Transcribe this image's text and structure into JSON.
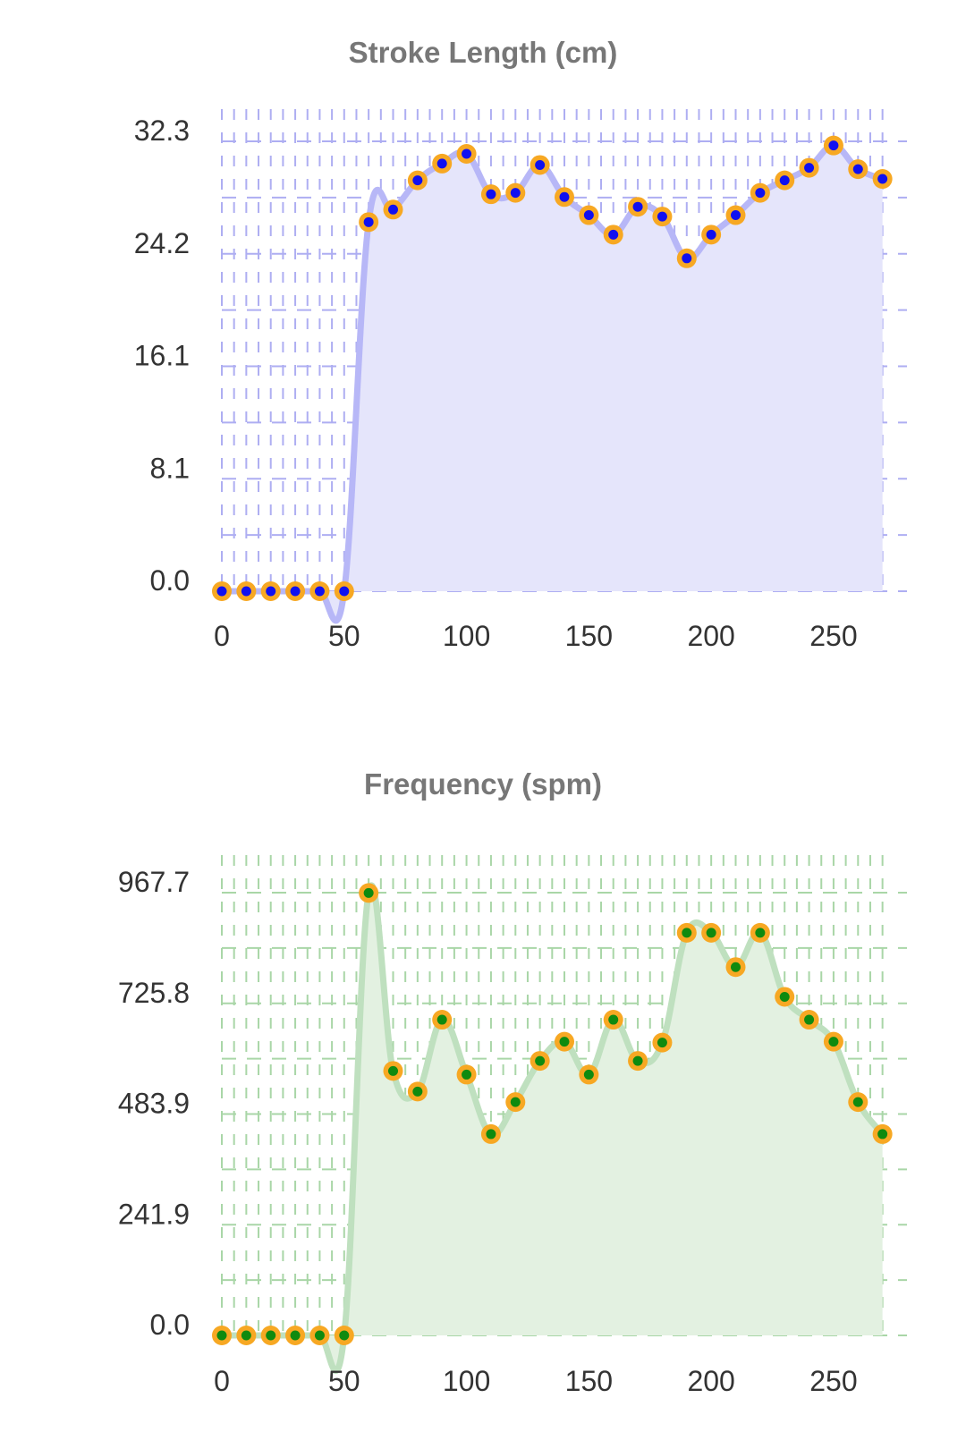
{
  "chart_data": [
    {
      "type": "line",
      "title": "Stroke Length (cm)",
      "xlabel": "",
      "ylabel": "",
      "x": [
        0,
        10,
        20,
        30,
        40,
        50,
        60,
        70,
        80,
        90,
        100,
        110,
        120,
        130,
        140,
        150,
        160,
        170,
        180,
        190,
        200,
        210,
        220,
        230,
        240,
        250,
        260,
        270
      ],
      "values": [
        0,
        0,
        0,
        0,
        0,
        0,
        26.5,
        27.4,
        29.5,
        30.7,
        31.4,
        28.5,
        28.6,
        30.6,
        28.3,
        27.0,
        25.6,
        27.6,
        26.9,
        23.9,
        25.6,
        27.0,
        28.6,
        29.5,
        30.4,
        32.0,
        30.3,
        29.6
      ],
      "ylim": [
        0,
        32.3
      ],
      "xlim": [
        0,
        280
      ],
      "yticks": [
        "0.0",
        "8.1",
        "16.1",
        "24.2",
        "32.3"
      ],
      "xticks": [
        "0",
        "50",
        "100",
        "150",
        "200",
        "250"
      ],
      "grid": true,
      "colors": {
        "line": "#b7b7f7",
        "fill": "#e5e5fb",
        "grid": "#aeaef2",
        "marker_outer": "#f7a823",
        "marker_inner": "#1010f0"
      }
    },
    {
      "type": "line",
      "title": "Frequency (spm)",
      "xlabel": "",
      "ylabel": "",
      "x": [
        0,
        10,
        20,
        30,
        40,
        50,
        60,
        70,
        80,
        90,
        100,
        110,
        120,
        130,
        140,
        150,
        160,
        170,
        180,
        190,
        200,
        210,
        220,
        230,
        240,
        250,
        260,
        270
      ],
      "values": [
        0,
        0,
        0,
        0,
        0,
        0,
        967,
        578,
        533,
        690,
        570,
        440,
        510,
        600,
        642,
        570,
        690,
        600,
        640,
        880,
        880,
        805,
        880,
        740,
        690,
        642,
        510,
        440
      ],
      "ylim": [
        0,
        967.7
      ],
      "xlim": [
        0,
        280
      ],
      "yticks": [
        "0.0",
        "241.9",
        "483.9",
        "725.8",
        "967.7"
      ],
      "xticks": [
        "0",
        "50",
        "100",
        "150",
        "200",
        "250"
      ],
      "grid": true,
      "colors": {
        "line": "#bfe0bf",
        "fill": "#e3f1e1",
        "grid": "#a9d6a7",
        "marker_outer": "#f7a823",
        "marker_inner": "#0f8a0f"
      }
    }
  ]
}
